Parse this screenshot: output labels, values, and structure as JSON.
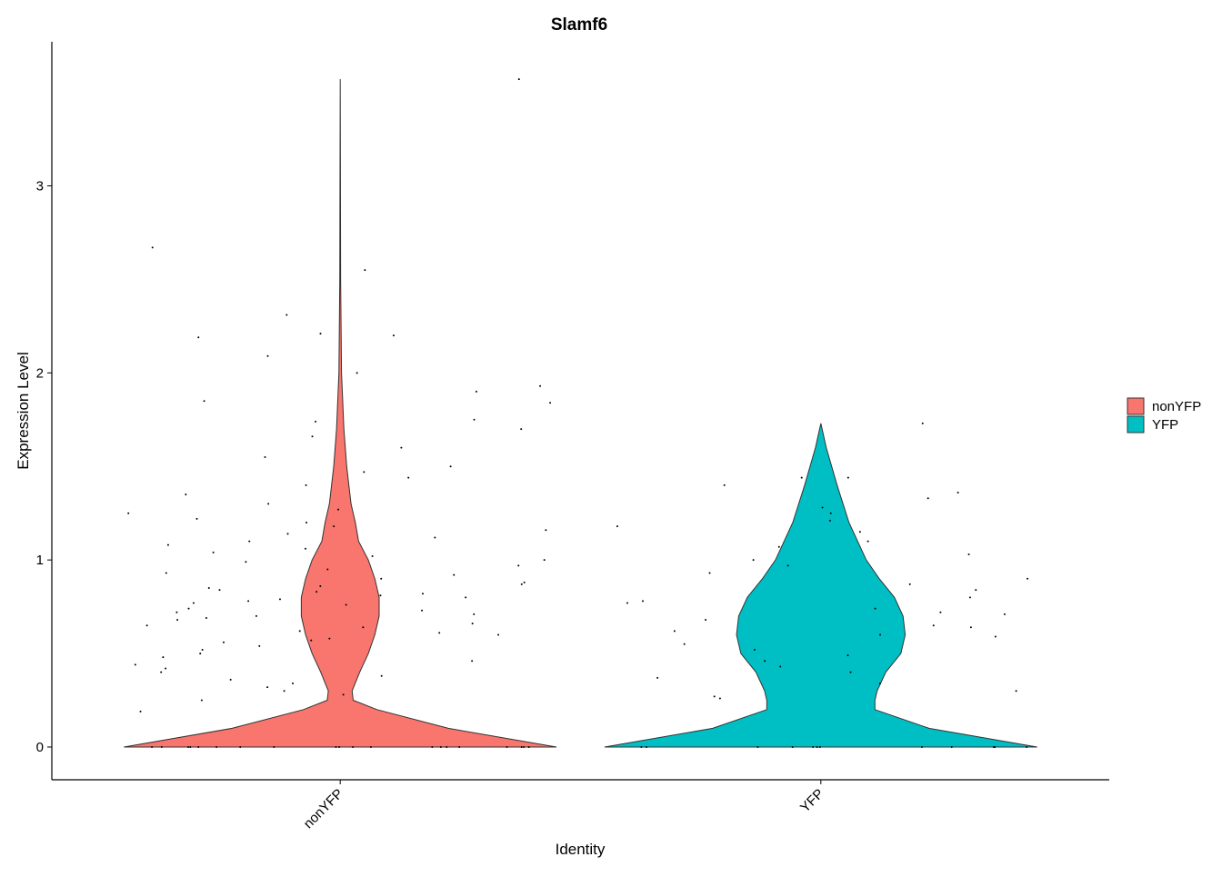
{
  "chart_data": {
    "type": "violin",
    "title": "Slamf6",
    "x_label": "Identity",
    "y_label": "Expression Level",
    "categories": [
      "nonYFP",
      "YFP"
    ],
    "ylim": [
      -0.175,
      3.77
    ],
    "yticks": [
      0,
      1,
      2,
      3
    ],
    "legend_position": "right",
    "series": [
      {
        "name": "nonYFP",
        "color": "#f8766d",
        "density_y": [
          0,
          0.1,
          0.2,
          0.25,
          0.3,
          0.4,
          0.5,
          0.6,
          0.7,
          0.8,
          0.9,
          1.0,
          1.1,
          1.2,
          1.3,
          1.5,
          1.7,
          2.0,
          2.5,
          3.57
        ],
        "density": [
          1.0,
          0.5,
          0.17,
          0.06,
          0.055,
          0.09,
          0.13,
          0.16,
          0.18,
          0.18,
          0.16,
          0.13,
          0.085,
          0.07,
          0.05,
          0.03,
          0.017,
          0.006,
          0.002,
          0
        ],
        "points": [
          3.57,
          2.67,
          2.55,
          2.31,
          2.21,
          2.2,
          2.19,
          2.09,
          2.0,
          1.93,
          1.9,
          1.85,
          1.84,
          1.75,
          1.74,
          1.7,
          1.66,
          1.6,
          1.55,
          1.5,
          1.47,
          1.44,
          1.4,
          1.35,
          1.3,
          1.27,
          1.25,
          1.22,
          1.2,
          1.16,
          1.12,
          1.1,
          1.06,
          1.04,
          1.02,
          1.0,
          0.97,
          0.95,
          0.92,
          0.9,
          0.88,
          0.86,
          0.84,
          0.82,
          0.8,
          0.78,
          0.76,
          0.74,
          0.72,
          0.7,
          0.68,
          0.66,
          0.64,
          0.62,
          0.6,
          0.58,
          0.56,
          0.54,
          0.52,
          0.5,
          0.48,
          0.46,
          0.44,
          0.42,
          0.4,
          0.38,
          0.36,
          0.34,
          0.32,
          0.3,
          0.28,
          0.25,
          0.19,
          0.85,
          0.81,
          0.77,
          0.73,
          0.69,
          0.65,
          0.61,
          0.57,
          0.93,
          0.99,
          1.08,
          1.14,
          1.18,
          0.79,
          0.83,
          0.87,
          0.71,
          0,
          0,
          0,
          0,
          0,
          0,
          0,
          0,
          0,
          0,
          0,
          0,
          0,
          0,
          0,
          0,
          0,
          0,
          0,
          0
        ]
      },
      {
        "name": "YFP",
        "color": "#00bfc4",
        "density_y": [
          0,
          0.1,
          0.2,
          0.25,
          0.3,
          0.4,
          0.5,
          0.6,
          0.7,
          0.8,
          0.9,
          1.0,
          1.2,
          1.4,
          1.6,
          1.73
        ],
        "density": [
          1.0,
          0.5,
          0.25,
          0.25,
          0.26,
          0.3,
          0.37,
          0.39,
          0.38,
          0.34,
          0.27,
          0.21,
          0.13,
          0.075,
          0.025,
          0
        ],
        "points": [
          1.73,
          1.44,
          1.44,
          1.4,
          1.36,
          1.33,
          1.28,
          1.25,
          1.21,
          1.18,
          1.15,
          1.1,
          1.07,
          1.03,
          1.0,
          0.97,
          0.93,
          0.9,
          0.87,
          0.84,
          0.8,
          0.77,
          0.74,
          0.71,
          0.68,
          0.65,
          0.62,
          0.59,
          0.55,
          0.52,
          0.49,
          0.46,
          0.43,
          0.4,
          0.37,
          0.34,
          0.3,
          0.27,
          0.26,
          0.72,
          0.64,
          0.6,
          0.78,
          0,
          0,
          0,
          0,
          0,
          0,
          0,
          0,
          0,
          0,
          0,
          0
        ]
      }
    ]
  }
}
